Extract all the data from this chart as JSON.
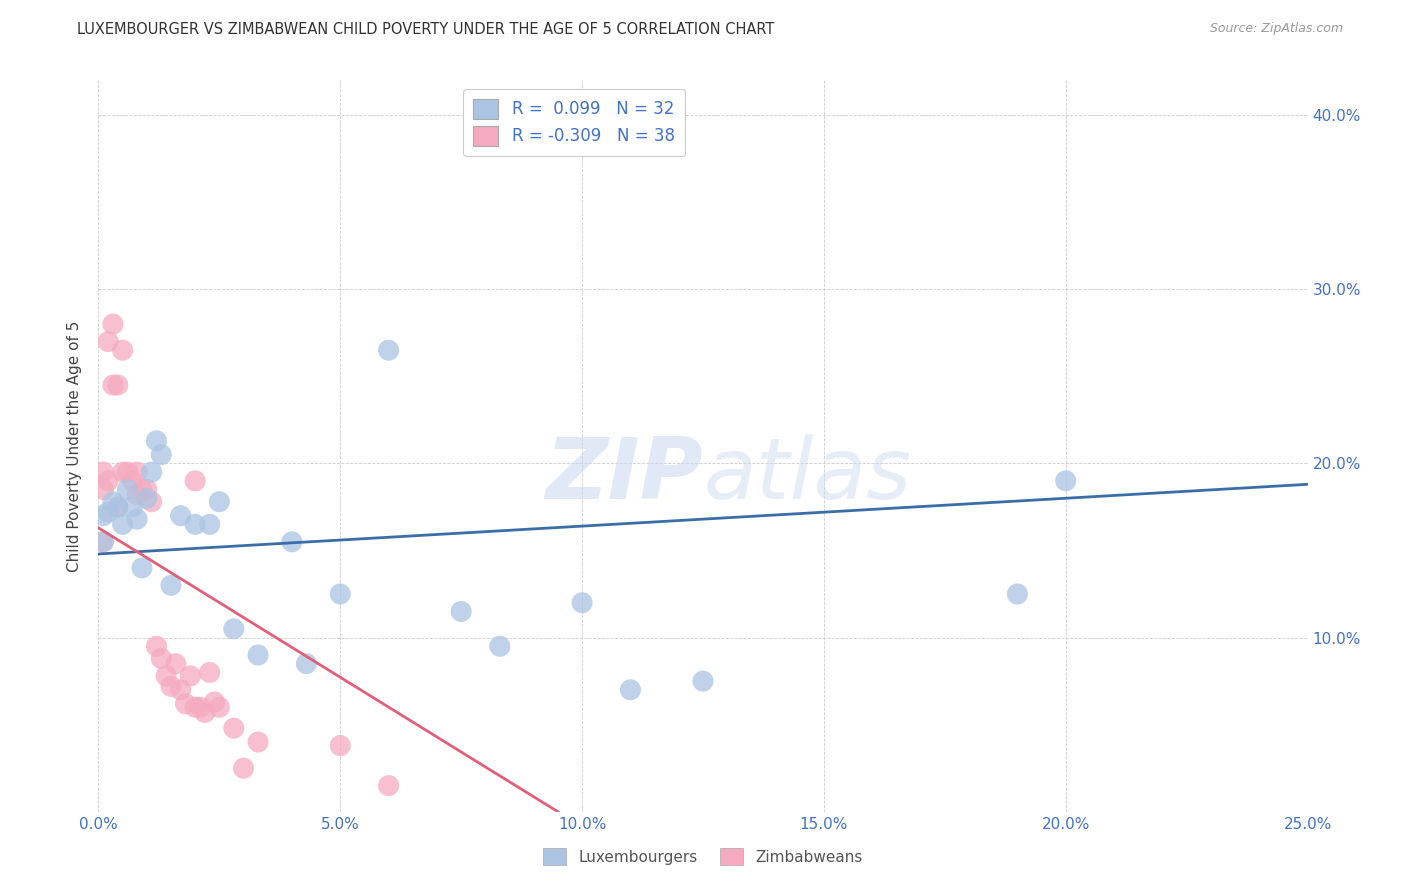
{
  "title": "LUXEMBOURGER VS ZIMBABWEAN CHILD POVERTY UNDER THE AGE OF 5 CORRELATION CHART",
  "source": "Source: ZipAtlas.com",
  "ylabel": "Child Poverty Under the Age of 5",
  "xlim": [
    0.0,
    0.25
  ],
  "ylim": [
    0.0,
    0.42
  ],
  "xticks": [
    0.0,
    0.05,
    0.1,
    0.15,
    0.2,
    0.25
  ],
  "yticks": [
    0.0,
    0.1,
    0.2,
    0.3,
    0.4
  ],
  "xtick_labels": [
    "0.0%",
    "5.0%",
    "10.0%",
    "15.0%",
    "20.0%",
    "25.0%"
  ],
  "ytick_labels": [
    "",
    "10.0%",
    "20.0%",
    "30.0%",
    "40.0%"
  ],
  "lux_R": 0.099,
  "lux_N": 32,
  "zim_R": -0.309,
  "zim_N": 38,
  "lux_color": "#aac4e2",
  "zim_color": "#f5aabf",
  "lux_line_color": "#3a6ea8",
  "zim_line_color": "#e0607a",
  "watermark_zip": "ZIP",
  "watermark_atlas": "atlas",
  "background_color": "#ffffff",
  "luxembourgers_x": [
    0.001,
    0.001,
    0.002,
    0.003,
    0.004,
    0.005,
    0.006,
    0.007,
    0.008,
    0.009,
    0.01,
    0.011,
    0.012,
    0.013,
    0.015,
    0.017,
    0.02,
    0.023,
    0.025,
    0.028,
    0.033,
    0.04,
    0.043,
    0.05,
    0.06,
    0.075,
    0.083,
    0.1,
    0.11,
    0.125,
    0.19,
    0.2
  ],
  "luxembourgers_y": [
    0.155,
    0.17,
    0.172,
    0.178,
    0.175,
    0.165,
    0.185,
    0.175,
    0.168,
    0.14,
    0.18,
    0.195,
    0.213,
    0.205,
    0.13,
    0.17,
    0.165,
    0.165,
    0.178,
    0.105,
    0.09,
    0.155,
    0.085,
    0.125,
    0.265,
    0.115,
    0.095,
    0.12,
    0.07,
    0.075,
    0.125,
    0.19
  ],
  "zimbabweans_x": [
    0.001,
    0.001,
    0.001,
    0.002,
    0.002,
    0.003,
    0.003,
    0.004,
    0.004,
    0.005,
    0.005,
    0.006,
    0.007,
    0.008,
    0.008,
    0.009,
    0.01,
    0.011,
    0.012,
    0.013,
    0.014,
    0.015,
    0.016,
    0.017,
    0.018,
    0.019,
    0.02,
    0.02,
    0.021,
    0.022,
    0.023,
    0.024,
    0.025,
    0.028,
    0.03,
    0.033,
    0.05,
    0.06
  ],
  "zimbabweans_y": [
    0.185,
    0.155,
    0.195,
    0.27,
    0.19,
    0.28,
    0.245,
    0.245,
    0.175,
    0.265,
    0.195,
    0.195,
    0.19,
    0.182,
    0.195,
    0.185,
    0.185,
    0.178,
    0.095,
    0.088,
    0.078,
    0.072,
    0.085,
    0.07,
    0.062,
    0.078,
    0.06,
    0.19,
    0.06,
    0.057,
    0.08,
    0.063,
    0.06,
    0.048,
    0.025,
    0.04,
    0.038,
    0.015
  ],
  "lux_line_x": [
    0.0,
    0.25
  ],
  "lux_line_y": [
    0.148,
    0.188
  ],
  "zim_line_x": [
    0.0,
    0.095
  ],
  "zim_line_y": [
    0.163,
    0.0
  ]
}
